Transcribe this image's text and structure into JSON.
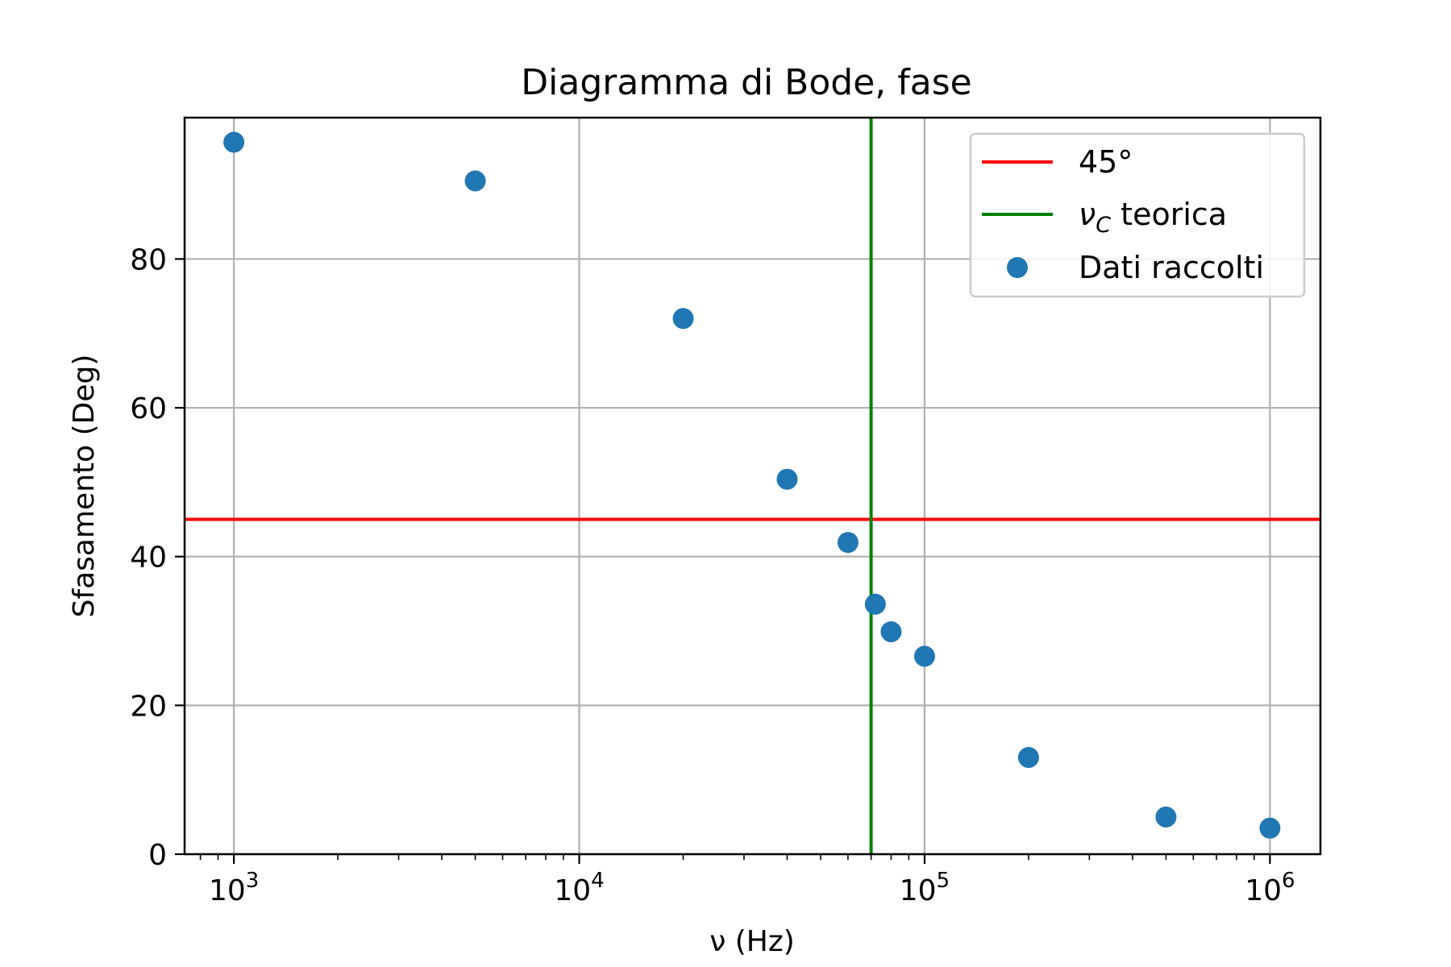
{
  "chart_data": {
    "type": "scatter",
    "title": "Diagramma di Bode, fase",
    "xlabel": "ν (Hz)",
    "ylabel": "Sfasamento (Deg)",
    "xscale": "log",
    "xlim": [
      720,
      1400000
    ],
    "ylim": [
      0,
      99
    ],
    "grid": true,
    "x_ticks": [
      {
        "value": 1000,
        "base": "10",
        "exp": "3"
      },
      {
        "value": 10000,
        "base": "10",
        "exp": "4"
      },
      {
        "value": 100000,
        "base": "10",
        "exp": "5"
      },
      {
        "value": 1000000,
        "base": "10",
        "exp": "6"
      }
    ],
    "y_ticks": [
      0,
      20,
      40,
      60,
      80
    ],
    "legend_position": "top-right",
    "series": [
      {
        "name": "Dati raccolti",
        "kind": "scatter",
        "color": "#1f77b4",
        "x": [
          1000,
          5000,
          20000,
          40000,
          60000,
          72000,
          80000,
          100000,
          200000,
          500000,
          1000000
        ],
        "y": [
          95.7,
          90.5,
          72.0,
          50.4,
          41.9,
          33.6,
          29.9,
          26.6,
          13.0,
          5.0,
          3.5
        ]
      }
    ],
    "reference_lines": [
      {
        "name": "45°",
        "orientation": "horizontal",
        "value": 45,
        "color": "#ff0000"
      },
      {
        "name_main": "ν",
        "name_sub": "C",
        "name_rest": " teorica",
        "orientation": "vertical",
        "value": 70000,
        "color": "#008000"
      }
    ]
  }
}
